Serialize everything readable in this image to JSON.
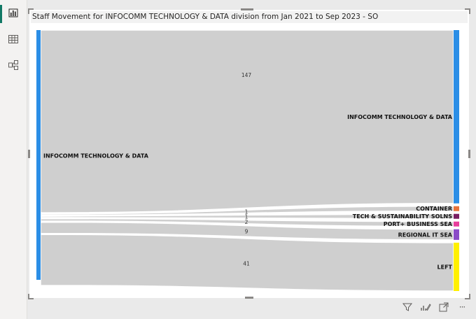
{
  "visual": {
    "title": "Staff Movement for INFOCOMM TECHNOLOGY & DATA division from Jan 2021 to Sep 2023 - SO"
  },
  "left_rail": {
    "items": [
      {
        "icon": "bar-chart-icon",
        "active": true
      },
      {
        "icon": "table-icon",
        "active": false
      },
      {
        "icon": "model-icon",
        "active": false
      }
    ]
  },
  "footer": {
    "icons": [
      "filter-icon",
      "focus-edit-icon",
      "expand-icon",
      "more-options-icon"
    ],
    "more_label": "···"
  },
  "colors": {
    "source_node": "#2b8ee6",
    "flow": "#cfcfcf",
    "infocomm_target": "#2b8ee6",
    "container": "#e8733c",
    "tech": "#7a1f62",
    "port": "#e83e9c",
    "regional": "#8a4bc7",
    "left": "#fff000"
  },
  "chart_data": {
    "type": "sankey",
    "title": "Staff Movement for INFOCOMM TECHNOLOGY & DATA division from Jan 2021 to Sep 2023 - SO",
    "source": "INFOCOMM TECHNOLOGY & DATA",
    "flows": [
      {
        "target": "INFOCOMM TECHNOLOGY & DATA",
        "value": 147,
        "label": "147",
        "color_key": "infocomm_target"
      },
      {
        "target": "CONTAINER",
        "value": 1,
        "label": "1",
        "color_key": "container"
      },
      {
        "target": "TECH & SUSTAINABILITY SOLNS",
        "value": 1,
        "label": "1",
        "color_key": "tech"
      },
      {
        "target": "PORT+ BUSINESS SEA",
        "value": 2,
        "label": "2",
        "color_key": "port"
      },
      {
        "target": "REGIONAL IT SEA",
        "value": 9,
        "label": "9",
        "color_key": "regional"
      },
      {
        "target": "LEFT",
        "value": 41,
        "label": "41",
        "color_key": "left"
      }
    ]
  }
}
